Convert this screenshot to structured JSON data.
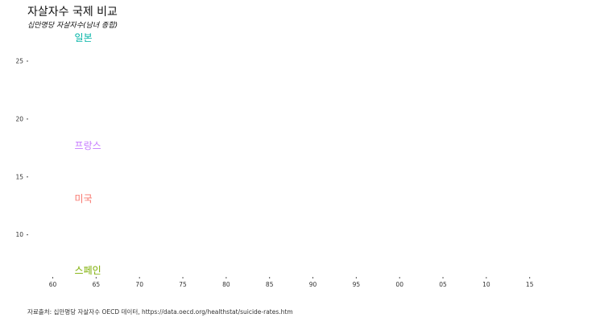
{
  "header": {
    "title": "자살자수 국제 비교",
    "subtitle": "십만명당 자살자수(남녀 종합)"
  },
  "footer": {
    "caption": "자료출처: 십만명당 자살자수 OECD 데이터, https://data.oecd.org/healthstat/suicide-rates.htm"
  },
  "chart_data": {
    "type": "line",
    "title": "자살자수 국제 비교",
    "subtitle": "십만명당 자살자수(남녀 종합)",
    "xlabel": "",
    "ylabel": "",
    "xlim": [
      1958,
      2018
    ],
    "ylim": [
      6.5,
      27.5
    ],
    "x_ticks": [
      1960,
      1965,
      1970,
      1975,
      1980,
      1985,
      1990,
      1995,
      2000,
      2005,
      2010,
      2015
    ],
    "x_tick_labels": [
      "60",
      "65",
      "70",
      "75",
      "80",
      "85",
      "90",
      "95",
      "00",
      "05",
      "10",
      "15"
    ],
    "y_ticks": [
      10,
      15,
      20,
      25
    ],
    "y_tick_labels": [
      "10",
      "15",
      "20",
      "25"
    ],
    "grid": false,
    "legend": "none",
    "series": [
      {
        "name": "일본",
        "color": "#00b3a6",
        "x": [
          1960
        ],
        "values": [
          27.0
        ]
      },
      {
        "name": "프랑스",
        "color": "#c77cff",
        "x": [
          1960
        ],
        "values": [
          17.7
        ]
      },
      {
        "name": "미국",
        "color": "#f8766d",
        "x": [
          1960
        ],
        "values": [
          13.1
        ]
      },
      {
        "name": "스페인",
        "color": "#7cae00",
        "x": [
          1960
        ],
        "values": [
          6.9
        ]
      }
    ]
  }
}
